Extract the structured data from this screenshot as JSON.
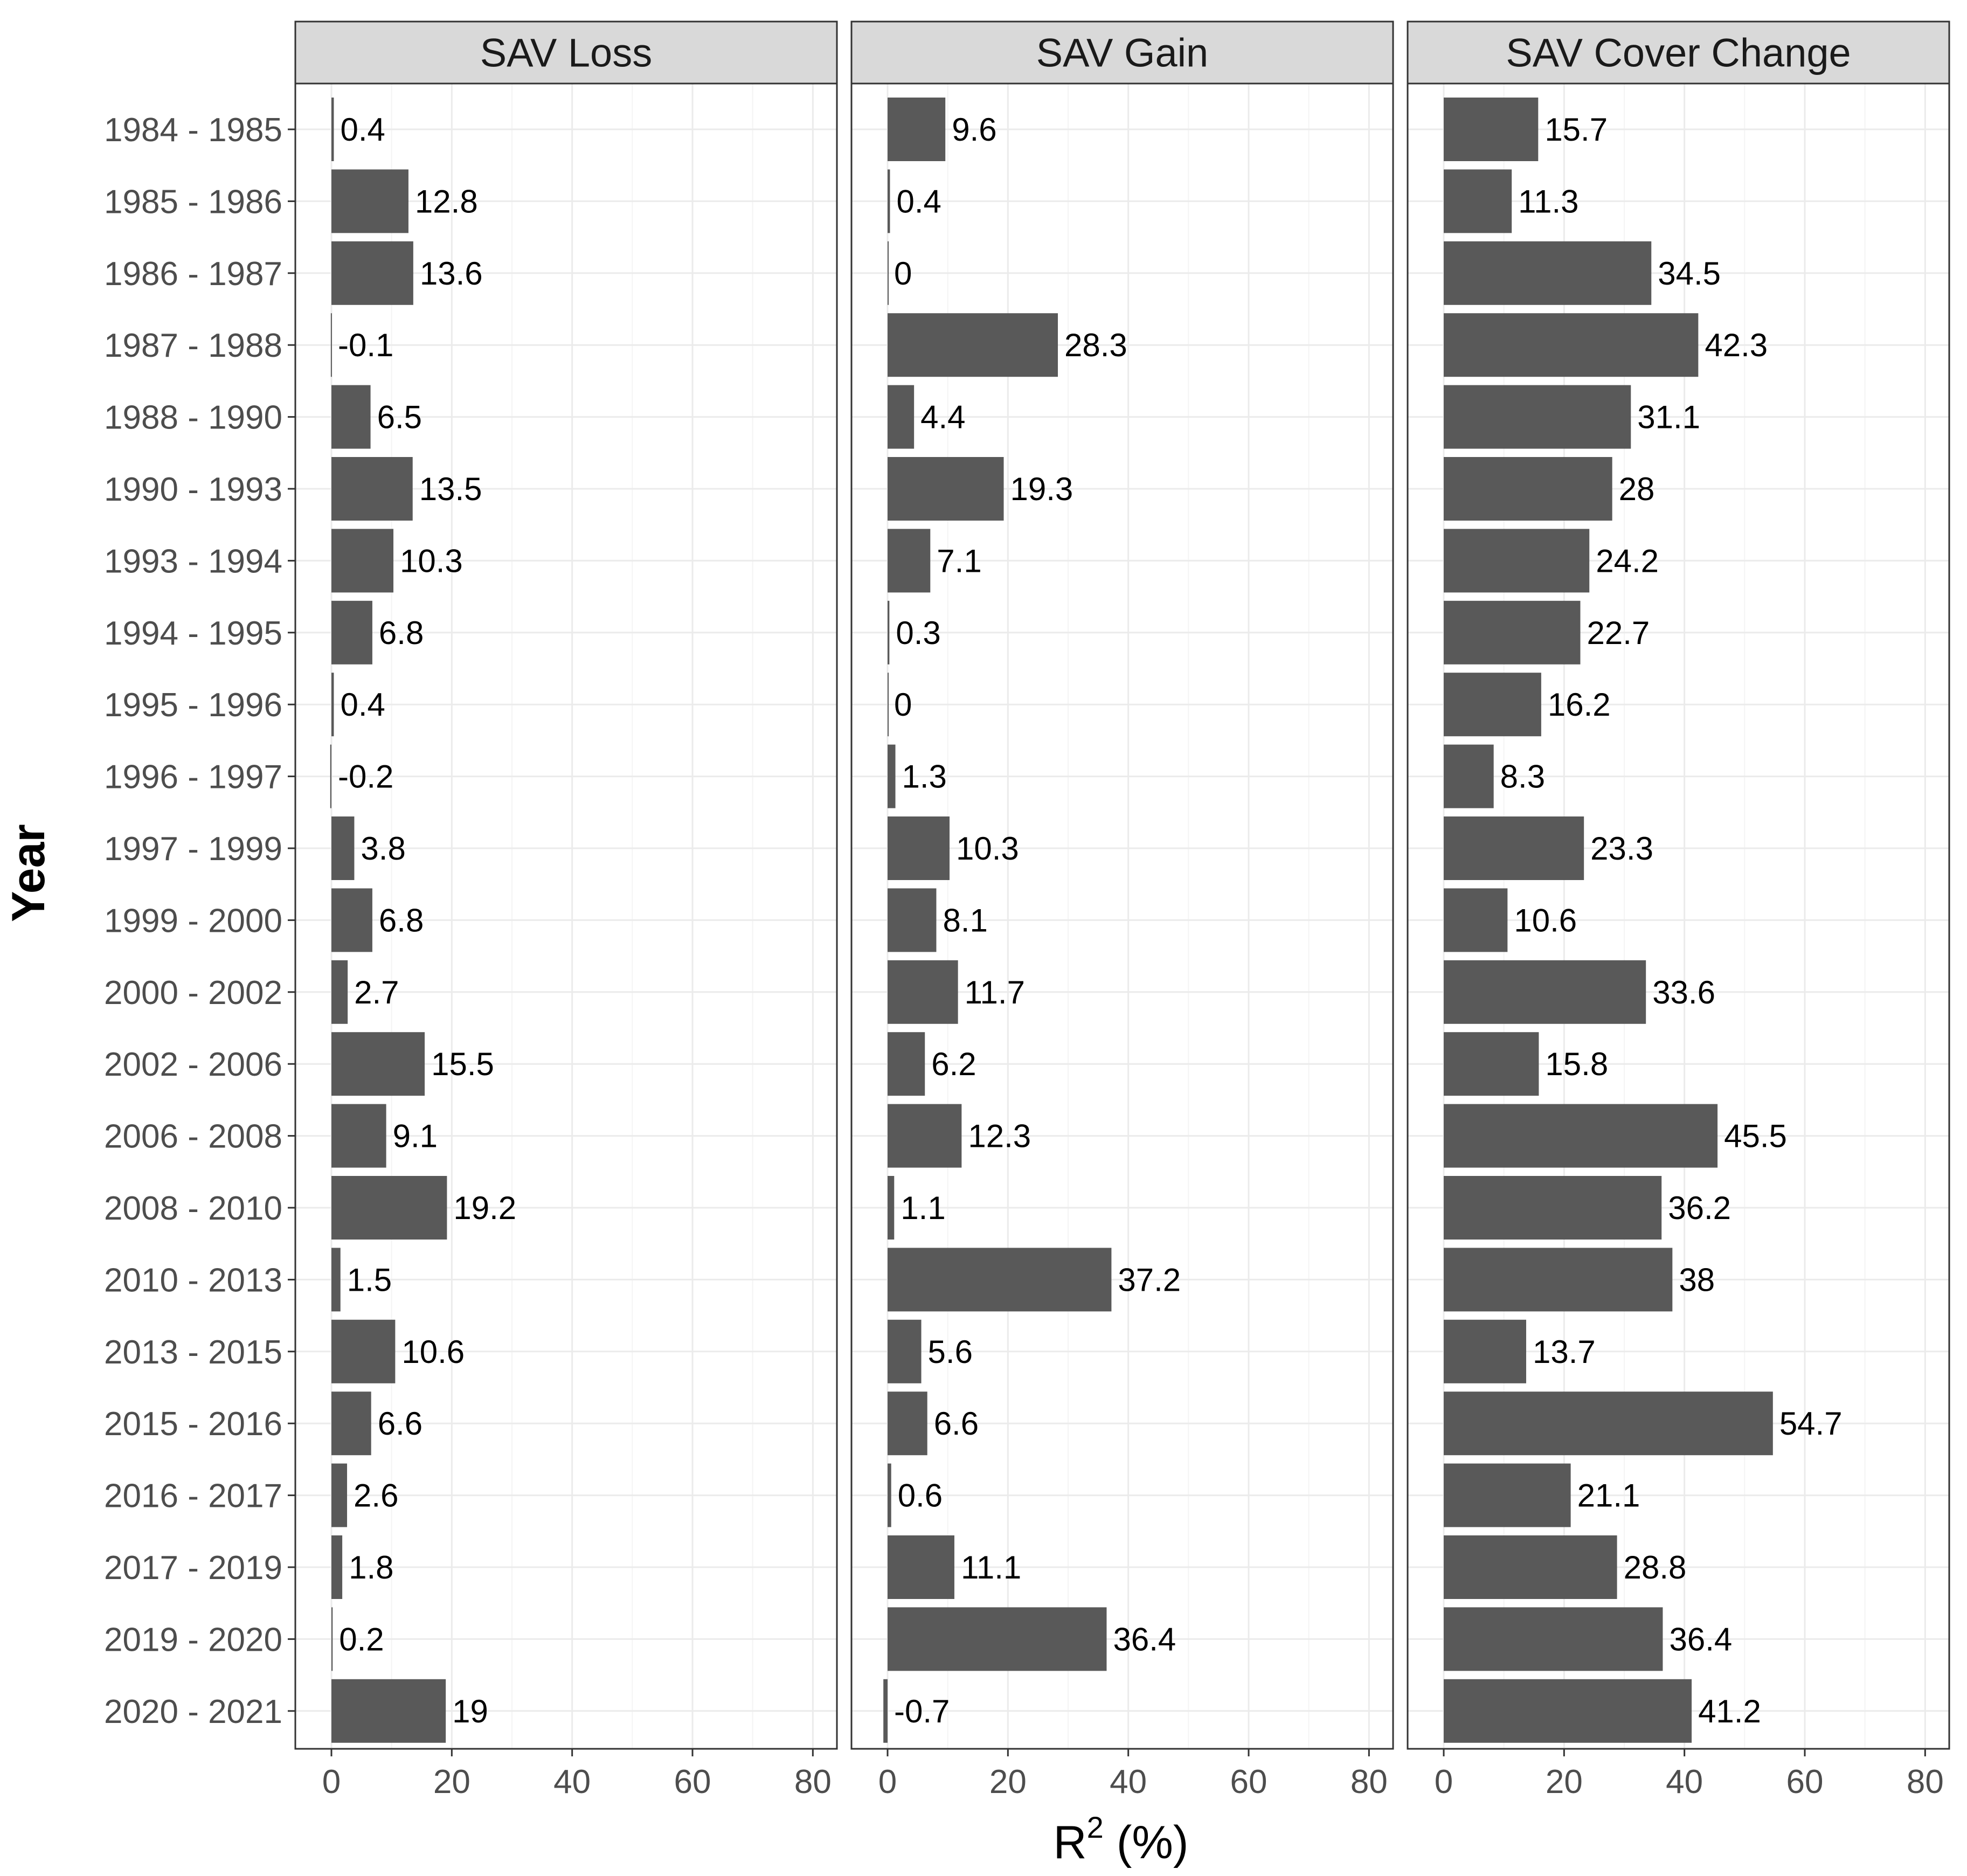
{
  "chart_data": {
    "type": "bar",
    "orientation": "horizontal",
    "facets": [
      "SAV Loss",
      "SAV Gain",
      "SAV Cover Change"
    ],
    "categories": [
      "1984 - 1985",
      "1985 - 1986",
      "1986 - 1987",
      "1987 - 1988",
      "1988 - 1990",
      "1990 - 1993",
      "1993 - 1994",
      "1994 - 1995",
      "1995 - 1996",
      "1996 - 1997",
      "1997 - 1999",
      "1999 - 2000",
      "2000 - 2002",
      "2002 - 2006",
      "2006 - 2008",
      "2008 - 2010",
      "2010 - 2013",
      "2013 - 2015",
      "2015 - 2016",
      "2016 - 2017",
      "2017 - 2019",
      "2019 - 2020",
      "2020 - 2021"
    ],
    "series": [
      {
        "name": "SAV Loss",
        "values": [
          0.4,
          12.8,
          13.6,
          -0.1,
          6.5,
          13.5,
          10.3,
          6.8,
          0.4,
          -0.2,
          3.8,
          6.8,
          2.7,
          15.5,
          9.1,
          19.2,
          1.5,
          10.6,
          6.6,
          2.6,
          1.8,
          0.2,
          19
        ]
      },
      {
        "name": "SAV Gain",
        "values": [
          9.6,
          0.4,
          0,
          28.3,
          4.4,
          19.3,
          7.1,
          0.3,
          0,
          1.3,
          10.3,
          8.1,
          11.7,
          6.2,
          12.3,
          1.1,
          37.2,
          5.6,
          6.6,
          0.6,
          11.1,
          36.4,
          -0.7
        ]
      },
      {
        "name": "SAV Cover Change",
        "values": [
          15.7,
          11.3,
          34.5,
          42.3,
          31.1,
          28,
          24.2,
          22.7,
          16.2,
          8.3,
          23.3,
          10.6,
          33.6,
          15.8,
          45.5,
          36.2,
          38,
          13.7,
          54.7,
          21.1,
          28.8,
          36.4,
          41.2
        ]
      }
    ],
    "x_ticks": [
      0,
      20,
      40,
      60,
      80
    ],
    "xlim": [
      -6,
      84
    ],
    "xlabel_main": "R",
    "xlabel_sup": "2",
    "xlabel_rest": " (%)",
    "ylabel": "Year",
    "grid": true,
    "legend": "none",
    "bar_color": "#595959"
  }
}
